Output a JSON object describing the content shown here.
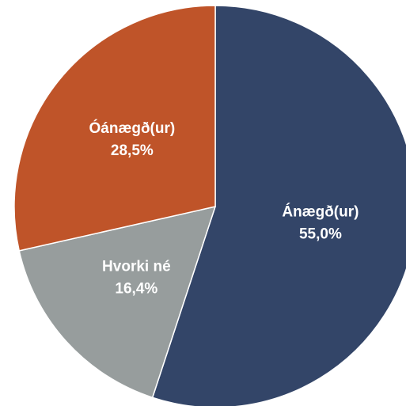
{
  "chart_data": {
    "type": "pie",
    "categories": [
      "Ánægð(ur)",
      "Hvorki né",
      "Óánægð(ur)"
    ],
    "values": [
      55.0,
      16.4,
      28.5
    ],
    "value_labels": [
      "55,0%",
      "16,4%",
      "28,5%"
    ],
    "colors": [
      "#334568",
      "#979d9d",
      "#bf5429"
    ]
  }
}
